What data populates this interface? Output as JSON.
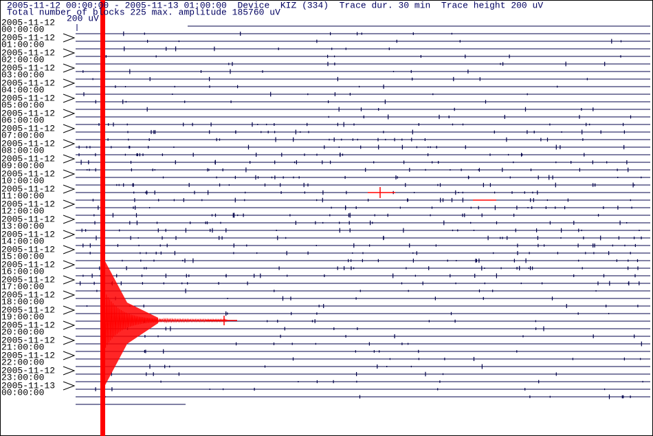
{
  "header": {
    "line1": "2005-11-12 00:00:00 - 2005-11-13 01:00:00  Device  KIZ (334)  Trace dur. 30 min  Trace height 200 uV",
    "line2": "Total number of blocks 225 max. amplitude 185760 uV",
    "scale_label": "200 uV"
  },
  "rows": [
    {
      "date": "2005-11-12",
      "time": "00:00:00"
    },
    {
      "date": "2005-11-12",
      "time": "01:00:00"
    },
    {
      "date": "2005-11-12",
      "time": "02:00:00"
    },
    {
      "date": "2005-11-12",
      "time": "03:00:00"
    },
    {
      "date": "2005-11-12",
      "time": "04:00:00"
    },
    {
      "date": "2005-11-12",
      "time": "05:00:00"
    },
    {
      "date": "2005-11-12",
      "time": "06:00:00"
    },
    {
      "date": "2005-11-12",
      "time": "07:00:00"
    },
    {
      "date": "2005-11-12",
      "time": "08:00:00"
    },
    {
      "date": "2005-11-12",
      "time": "09:00:00"
    },
    {
      "date": "2005-11-12",
      "time": "10:00:00"
    },
    {
      "date": "2005-11-12",
      "time": "11:00:00"
    },
    {
      "date": "2005-11-12",
      "time": "12:00:00"
    },
    {
      "date": "2005-11-12",
      "time": "13:00:00"
    },
    {
      "date": "2005-11-12",
      "time": "14:00:00"
    },
    {
      "date": "2005-11-12",
      "time": "15:00:00"
    },
    {
      "date": "2005-11-12",
      "time": "16:00:00"
    },
    {
      "date": "2005-11-12",
      "time": "17:00:00"
    },
    {
      "date": "2005-11-12",
      "time": "18:00:00"
    },
    {
      "date": "2005-11-12",
      "time": "19:00:00"
    },
    {
      "date": "2005-11-12",
      "time": "20:00:00"
    },
    {
      "date": "2005-11-12",
      "time": "21:00:00"
    },
    {
      "date": "2005-11-12",
      "time": "22:00:00"
    },
    {
      "date": "2005-11-12",
      "time": "23:00:00"
    },
    {
      "date": "2005-11-13",
      "time": "00:00:00"
    }
  ]
}
